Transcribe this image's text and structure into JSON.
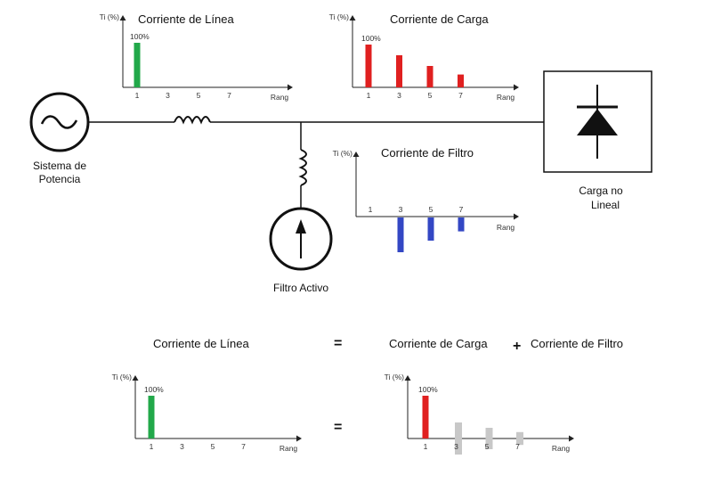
{
  "diagram": {
    "source_label_line1": "Sistema de",
    "source_label_line2": "Potencia",
    "load_label_line1": "Carga no",
    "load_label_line2": "Lineal",
    "filter_label": "Filtro  Activo"
  },
  "chart_data": [
    {
      "type": "bar",
      "title": "Corriente de Línea",
      "ylabel": "Ti (%)",
      "xlabel": "Rang",
      "categories": [
        "1",
        "3",
        "5",
        "7"
      ],
      "values": [
        100,
        0,
        0,
        0
      ],
      "top_label": "100%",
      "color": "#22a84a"
    },
    {
      "type": "bar",
      "title": "Corriente de Carga",
      "ylabel": "Ti (%)",
      "xlabel": "Rang",
      "categories": [
        "1",
        "3",
        "5",
        "7"
      ],
      "values": [
        100,
        75,
        50,
        30
      ],
      "top_label": "100%",
      "color": "#e02020"
    },
    {
      "type": "bar",
      "title": "Corriente de Filtro",
      "ylabel": "Ti (%)",
      "xlabel": "Rang",
      "categories": [
        "1",
        "3",
        "5",
        "7"
      ],
      "values": [
        0,
        -75,
        -50,
        -30
      ],
      "color": "#3347c4"
    },
    {
      "type": "bar",
      "title": "",
      "ylabel": "Ti (%)",
      "xlabel": "Rang",
      "categories": [
        "1",
        "3",
        "5",
        "7"
      ],
      "values": [
        100,
        0,
        0,
        0
      ],
      "top_label": "100%",
      "color": "#22a84a"
    },
    {
      "type": "bar",
      "title": "",
      "ylabel": "Ti (%)",
      "xlabel": "Rang",
      "categories": [
        "1",
        "3",
        "5",
        "7"
      ],
      "values": [
        100,
        0,
        0,
        0
      ],
      "overlay_range_percent": [
        [
          75,
          -75
        ],
        [
          50,
          -50
        ],
        [
          30,
          -30
        ]
      ],
      "top_label": "100%",
      "color": "#e02020",
      "overlay_color": "#c8c8c8"
    }
  ],
  "equation": {
    "left": "Corriente de Línea",
    "equals": "=",
    "right_a": "Corriente de Carga",
    "plus": "+",
    "right_b": "Corriente de Filtro",
    "equals_lower": "="
  }
}
